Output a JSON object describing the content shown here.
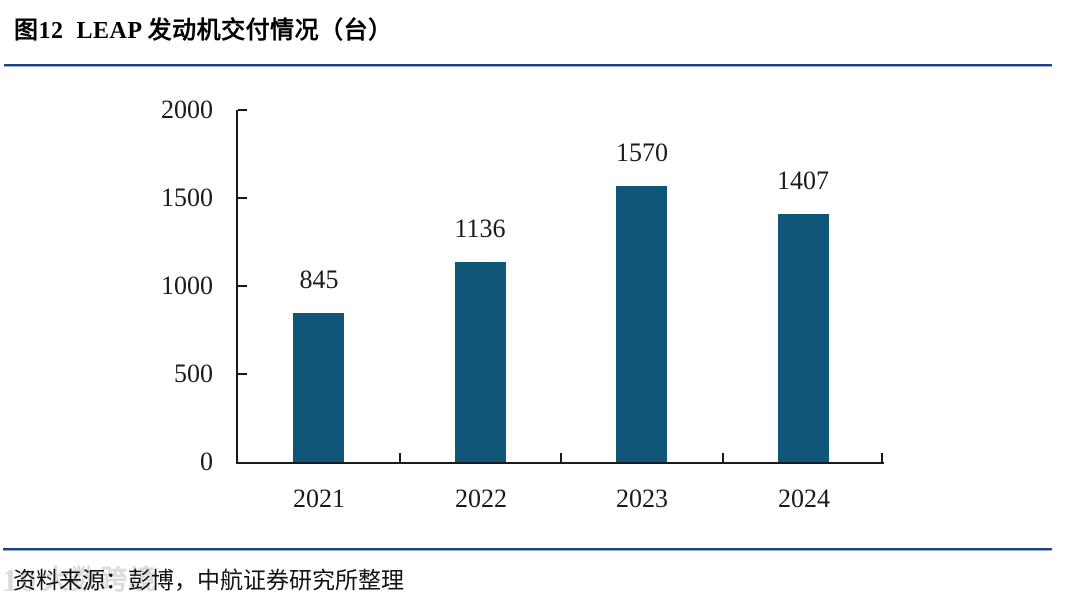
{
  "page": {
    "title": "图12  LEAP 发动机交付情况（台）",
    "source_note": "资料来源：彭博，中航证券研究所整理",
    "watermark_logo": "10",
    "watermark_text": "大数跨境"
  },
  "colors": {
    "bar": "#105679",
    "axis": "#1a1a1a",
    "rule": "#24417E"
  },
  "chart_data": {
    "type": "bar",
    "title": "图12 LEAP 发动机交付情况（台）",
    "categories": [
      "2021",
      "2022",
      "2023",
      "2024"
    ],
    "values": [
      845,
      1136,
      1570,
      1407
    ],
    "data_labels": [
      845,
      1136,
      1570,
      1407
    ],
    "xlabel": "",
    "ylabel": "",
    "ylim": [
      0,
      2000
    ],
    "yticks": [
      0,
      500,
      1000,
      1500,
      2000
    ],
    "grid": false,
    "legend": null
  }
}
